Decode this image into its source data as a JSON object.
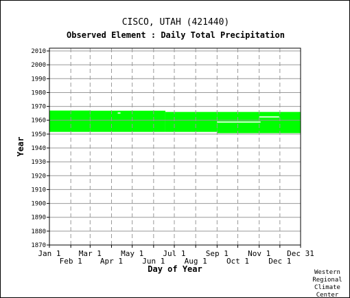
{
  "chart_data": {
    "type": "bar",
    "title": "CISCO, UTAH   (421440)",
    "subtitle": "Observed Element : Daily Total Precipitation",
    "xlabel": "Day of Year",
    "ylabel": "Year",
    "ylim": [
      1870,
      2012
    ],
    "xlim_day": [
      1,
      365
    ],
    "y_ticks": [
      1870,
      1880,
      1890,
      1900,
      1910,
      1920,
      1930,
      1940,
      1950,
      1960,
      1970,
      1980,
      1990,
      2000,
      2010
    ],
    "x_ticks_top_row": [
      {
        "label": "Jan 1",
        "day": 1
      },
      {
        "label": "Mar 1",
        "day": 60
      },
      {
        "label": "May 1",
        "day": 121
      },
      {
        "label": "Jul 1",
        "day": 182
      },
      {
        "label": "Sep 1",
        "day": 244
      },
      {
        "label": "Nov 1",
        "day": 305
      },
      {
        "label": "Dec 31",
        "day": 365
      }
    ],
    "x_ticks_bottom_row": [
      {
        "label": "Feb 1",
        "day": 32
      },
      {
        "label": "Apr 1",
        "day": 91
      },
      {
        "label": "Jun 1",
        "day": 152
      },
      {
        "label": "Aug 1",
        "day": 213
      },
      {
        "label": "Oct 1",
        "day": 274
      },
      {
        "label": "Dec 1",
        "day": 335
      }
    ],
    "grid": true,
    "coverage_color": "#00ff00",
    "coverage_periods": [
      {
        "day_start": 1,
        "day_end": 59,
        "year_start": 1951.6,
        "year_end": 1967.0
      },
      {
        "day_start": 60,
        "day_end": 168,
        "year_start": 1951.6,
        "year_end": 1966.9
      },
      {
        "day_start": 169,
        "day_end": 243,
        "year_start": 1951.6,
        "year_end": 1966.0
      },
      {
        "day_start": 244,
        "day_end": 365,
        "year_start": 1950.7,
        "year_end": 1966.0
      }
    ],
    "missing_periods": [
      {
        "day_start": 244,
        "day_end": 307,
        "year": 1958.7
      },
      {
        "day_start": 305,
        "day_end": 334,
        "year": 1962.4
      },
      {
        "day_start": 100,
        "day_end": 104,
        "year": 1965.2
      }
    ]
  },
  "credit": "Western\nRegional\nClimate\nCenter"
}
